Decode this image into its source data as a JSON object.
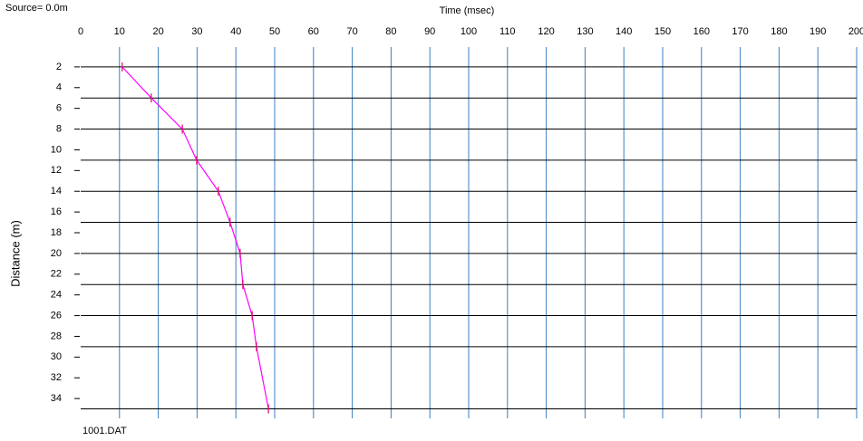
{
  "chart_data": {
    "type": "seismic",
    "title": "Source=  0.0m",
    "x_label": "Time (msec)",
    "y_label": "Distance (m)",
    "footer": "1001.DAT",
    "xlim": [
      0,
      200
    ],
    "xticks": [
      0,
      10,
      20,
      30,
      40,
      50,
      60,
      70,
      80,
      90,
      100,
      110,
      120,
      130,
      140,
      150,
      160,
      170,
      180,
      190,
      200
    ],
    "ylim": [
      0,
      36
    ],
    "yticks": [
      2,
      4,
      6,
      8,
      10,
      12,
      14,
      16,
      18,
      20,
      22,
      24,
      26,
      28,
      30,
      32,
      34
    ],
    "grid": true,
    "grid_color": "#3a7fc1",
    "traces": [
      2,
      5,
      8,
      11,
      14,
      17,
      20,
      23,
      26,
      29,
      35
    ],
    "picks": [
      10.7,
      18.2,
      26.2,
      29.9,
      35.5,
      38.5,
      41.1,
      41.8,
      44.2,
      45.3,
      48.4
    ],
    "pick_color": "#ff00ff"
  }
}
